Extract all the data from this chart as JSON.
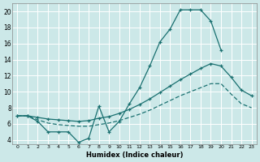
{
  "xlabel": "Humidex (Indice chaleur)",
  "bg_color": "#cce8e8",
  "grid_color": "#ffffff",
  "line_color": "#1a7070",
  "xlim": [
    -0.5,
    23.5
  ],
  "ylim": [
    3.5,
    21
  ],
  "xticks": [
    0,
    1,
    2,
    3,
    4,
    5,
    6,
    7,
    8,
    9,
    10,
    11,
    12,
    13,
    14,
    15,
    16,
    17,
    18,
    19,
    20,
    21,
    22,
    23
  ],
  "yticks": [
    4,
    6,
    8,
    10,
    12,
    14,
    16,
    18,
    20
  ],
  "curve1_x": [
    0,
    1,
    2,
    3,
    4,
    5,
    6,
    7,
    8,
    9,
    10,
    11,
    12,
    13,
    14,
    15,
    16,
    17,
    18,
    19,
    20
  ],
  "curve1_y": [
    7,
    7,
    6.3,
    5,
    5,
    5,
    3.7,
    4.2,
    8.2,
    5.0,
    6.3,
    8.5,
    10.5,
    13.2,
    16.2,
    17.8,
    20.2,
    20.2,
    20.2,
    18.8,
    15.2
  ],
  "line2_x": [
    0,
    1,
    2,
    3,
    4,
    5,
    6,
    7,
    8,
    9,
    10,
    11,
    12,
    13,
    14,
    15,
    16,
    17,
    18,
    19,
    20,
    21,
    22,
    23
  ],
  "line2_y": [
    7.0,
    7.0,
    6.8,
    6.6,
    6.5,
    6.4,
    6.3,
    6.4,
    6.7,
    6.9,
    7.3,
    7.8,
    8.4,
    9.1,
    9.9,
    10.7,
    11.5,
    12.2,
    12.9,
    13.5,
    13.2,
    11.8,
    10.2,
    9.5
  ],
  "line3_x": [
    0,
    1,
    2,
    3,
    4,
    5,
    6,
    7,
    8,
    9,
    10,
    11,
    12,
    13,
    14,
    15,
    16,
    17,
    18,
    19,
    20,
    21,
    22,
    23
  ],
  "line3_y": [
    7.0,
    7.0,
    6.5,
    6.1,
    5.9,
    5.8,
    5.7,
    5.7,
    5.9,
    6.1,
    6.4,
    6.8,
    7.2,
    7.7,
    8.3,
    8.9,
    9.5,
    10.0,
    10.5,
    11.0,
    11.0,
    9.7,
    8.5,
    8.0
  ]
}
